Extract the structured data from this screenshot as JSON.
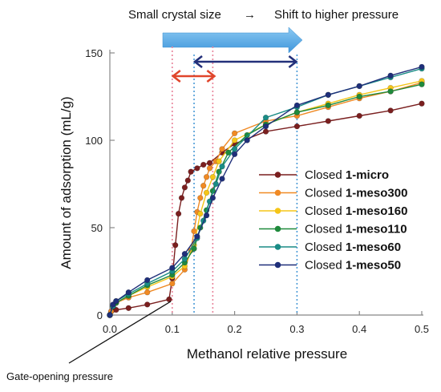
{
  "chart_data": {
    "type": "line",
    "xlabel": "Methanol relative pressure",
    "ylabel": "Amount of adsorption (mL/g)",
    "xlim": [
      0.0,
      0.5
    ],
    "ylim": [
      0,
      150
    ],
    "xticks": [
      "0.0",
      "0.1",
      "0.2",
      "0.3",
      "0.4",
      "0.5"
    ],
    "yticks": [
      "0",
      "50",
      "100",
      "150"
    ],
    "legend_position": "right",
    "grid": false,
    "series": [
      {
        "name": "Closed 1-micro",
        "prefix": "Closed ",
        "bold": "1-micro",
        "color": "#7a1f1f",
        "x": [
          0.0,
          0.002,
          0.005,
          0.01,
          0.03,
          0.06,
          0.095,
          0.1,
          0.105,
          0.11,
          0.115,
          0.12,
          0.125,
          0.13,
          0.14,
          0.15,
          0.16,
          0.18,
          0.2,
          0.25,
          0.3,
          0.35,
          0.4,
          0.45,
          0.5
        ],
        "y": [
          0,
          2,
          3,
          3,
          4,
          6,
          9,
          21,
          40,
          58,
          67,
          73,
          77,
          82,
          84,
          86,
          87,
          93,
          98,
          105,
          108,
          111,
          114,
          117,
          121
        ]
      },
      {
        "name": "Closed 1-meso300",
        "prefix": "Closed ",
        "bold": "1-meso300",
        "color": "#f08a24",
        "x": [
          0.0,
          0.002,
          0.005,
          0.01,
          0.03,
          0.06,
          0.1,
          0.12,
          0.13,
          0.135,
          0.14,
          0.145,
          0.15,
          0.155,
          0.16,
          0.17,
          0.18,
          0.2,
          0.25,
          0.3,
          0.35,
          0.4,
          0.45,
          0.5
        ],
        "y": [
          0,
          2,
          5,
          7,
          10,
          13,
          18,
          26,
          37,
          48,
          59,
          67,
          74,
          79,
          84,
          88,
          95,
          104,
          111,
          114,
          119,
          124,
          128,
          133
        ]
      },
      {
        "name": "Closed 1-meso160",
        "prefix": "Closed ",
        "bold": "1-meso160",
        "color": "#f5c518",
        "x": [
          0.0,
          0.005,
          0.01,
          0.03,
          0.06,
          0.1,
          0.12,
          0.135,
          0.145,
          0.155,
          0.165,
          0.175,
          0.2,
          0.25,
          0.3,
          0.35,
          0.4,
          0.45,
          0.5
        ],
        "y": [
          0,
          5,
          7,
          11,
          16,
          22,
          28,
          40,
          58,
          70,
          79,
          88,
          100,
          109,
          116,
          121,
          126,
          130,
          134
        ]
      },
      {
        "name": "Closed 1-meso110",
        "prefix": "Closed ",
        "bold": "1-meso110",
        "color": "#1f8a3c",
        "x": [
          0.0,
          0.005,
          0.01,
          0.03,
          0.06,
          0.1,
          0.12,
          0.135,
          0.145,
          0.155,
          0.165,
          0.175,
          0.19,
          0.22,
          0.25,
          0.3,
          0.35,
          0.4,
          0.45,
          0.5
        ],
        "y": [
          0,
          5,
          7,
          11,
          17,
          23,
          30,
          38,
          50,
          60,
          71,
          82,
          93,
          103,
          109,
          116,
          120,
          125,
          128,
          132
        ]
      },
      {
        "name": "Closed 1-meso60",
        "prefix": "Closed ",
        "bold": "1-meso60",
        "color": "#1a8c86",
        "x": [
          0.0,
          0.005,
          0.01,
          0.03,
          0.06,
          0.1,
          0.12,
          0.14,
          0.15,
          0.16,
          0.17,
          0.18,
          0.2,
          0.25,
          0.3,
          0.35,
          0.4,
          0.45,
          0.5
        ],
        "y": [
          0,
          5,
          8,
          12,
          18,
          25,
          32,
          44,
          54,
          65,
          75,
          85,
          95,
          113,
          119,
          126,
          131,
          136,
          141
        ]
      },
      {
        "name": "Closed 1-meso50",
        "prefix": "Closed ",
        "bold": "1-meso50",
        "color": "#1f2f7a",
        "x": [
          0.0,
          0.005,
          0.01,
          0.03,
          0.06,
          0.1,
          0.12,
          0.14,
          0.155,
          0.165,
          0.18,
          0.2,
          0.22,
          0.25,
          0.3,
          0.35,
          0.4,
          0.45,
          0.5
        ],
        "y": [
          0,
          6,
          8,
          13,
          20,
          27,
          35,
          45,
          57,
          67,
          78,
          92,
          100,
          108,
          120,
          126,
          131,
          137,
          142
        ]
      }
    ],
    "annotations": {
      "top_text_left": "Small crystal size",
      "top_arrow_glyph": "→",
      "top_text_right": "Shift to higher pressure",
      "bottom_label": "Gate-opening pressure"
    },
    "guide_lines": {
      "pink_x": [
        0.1,
        0.165
      ],
      "blue_x": [
        0.135,
        0.3
      ]
    },
    "colors": {
      "big_arrow": "#5aaee8",
      "red_arrow": "#e0452b",
      "navy_arrow": "#23307a",
      "pink_dotted": "#e8839a",
      "blue_dotted": "#4a9ad6",
      "axis": "#888888"
    }
  }
}
